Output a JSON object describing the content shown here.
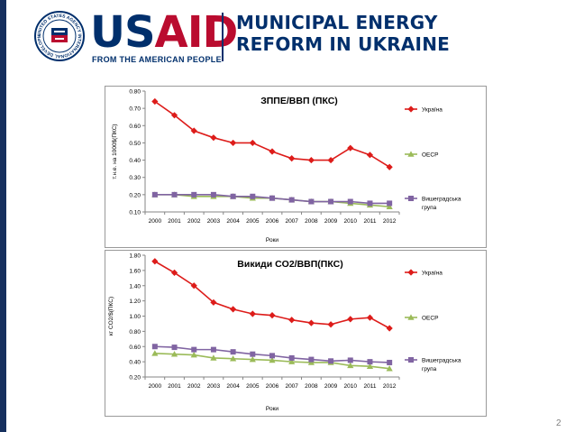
{
  "header": {
    "brand_us": "US",
    "brand_aid": "AID",
    "tagline": "FROM THE AMERICAN PEOPLE",
    "title_line1": "MUNICIPAL ENERGY",
    "title_line2": "REFORM IN UKRAINE",
    "seal_icon": "usaid-seal-icon",
    "seal_text": "UNITED STATES AGENCY INTERNATIONAL DEVELOPMENT"
  },
  "colors": {
    "ukraine": "#dd1c1a",
    "oecd": "#9bbb59",
    "visegrad": "#8064a2",
    "brand_blue": "#002f6c",
    "brand_red": "#ba0c2f"
  },
  "page_number": "2",
  "chart_data": [
    {
      "type": "line",
      "title": "ЗППЕ/ВВП (ПКС)",
      "xlabel": "Роки",
      "ylabel": "т.н.е. на 1000$(ПКС)",
      "ylim": [
        0.1,
        0.8
      ],
      "yticks": [
        "0.10",
        "0.20",
        "0.30",
        "0.40",
        "0.50",
        "0.60",
        "0.70",
        "0.80"
      ],
      "categories": [
        "2000",
        "2001",
        "2002",
        "2003",
        "2004",
        "2005",
        "2006",
        "2007",
        "2008",
        "2009",
        "2010",
        "2011",
        "2012"
      ],
      "legend_position": "right",
      "series": [
        {
          "name": "Україна",
          "values": [
            0.74,
            0.66,
            0.57,
            0.53,
            0.5,
            0.5,
            0.45,
            0.41,
            0.4,
            0.4,
            0.47,
            0.43,
            0.36
          ]
        },
        {
          "name": "ОЕСР",
          "values": [
            0.2,
            0.2,
            0.19,
            0.19,
            0.19,
            0.18,
            0.18,
            0.17,
            0.16,
            0.16,
            0.15,
            0.14,
            0.13
          ]
        },
        {
          "name": "Вишеградська група",
          "values": [
            0.2,
            0.2,
            0.2,
            0.2,
            0.19,
            0.19,
            0.18,
            0.17,
            0.16,
            0.16,
            0.16,
            0.15,
            0.15
          ]
        }
      ]
    },
    {
      "type": "line",
      "title": "Викиди CO2/ВВП(ПКС)",
      "xlabel": "Роки",
      "ylabel": "кг CO2/$(ПКС)",
      "ylim": [
        0.2,
        1.8
      ],
      "yticks": [
        "0.20",
        "0.40",
        "0.60",
        "0.80",
        "1.00",
        "1.20",
        "1.40",
        "1.60",
        "1.80"
      ],
      "categories": [
        "2000",
        "2001",
        "2002",
        "2003",
        "2004",
        "2005",
        "2006",
        "2007",
        "2008",
        "2009",
        "2010",
        "2011",
        "2012"
      ],
      "legend_position": "right",
      "series": [
        {
          "name": "Україна",
          "values": [
            1.72,
            1.57,
            1.4,
            1.18,
            1.09,
            1.03,
            1.01,
            0.95,
            0.91,
            0.89,
            0.96,
            0.98,
            0.84
          ]
        },
        {
          "name": "ОЕСР",
          "values": [
            0.51,
            0.5,
            0.49,
            0.45,
            0.44,
            0.43,
            0.42,
            0.4,
            0.39,
            0.39,
            0.35,
            0.34,
            0.31
          ]
        },
        {
          "name": "Вишеградська група",
          "values": [
            0.6,
            0.59,
            0.56,
            0.56,
            0.53,
            0.5,
            0.48,
            0.45,
            0.43,
            0.41,
            0.42,
            0.4,
            0.39
          ]
        }
      ]
    }
  ]
}
